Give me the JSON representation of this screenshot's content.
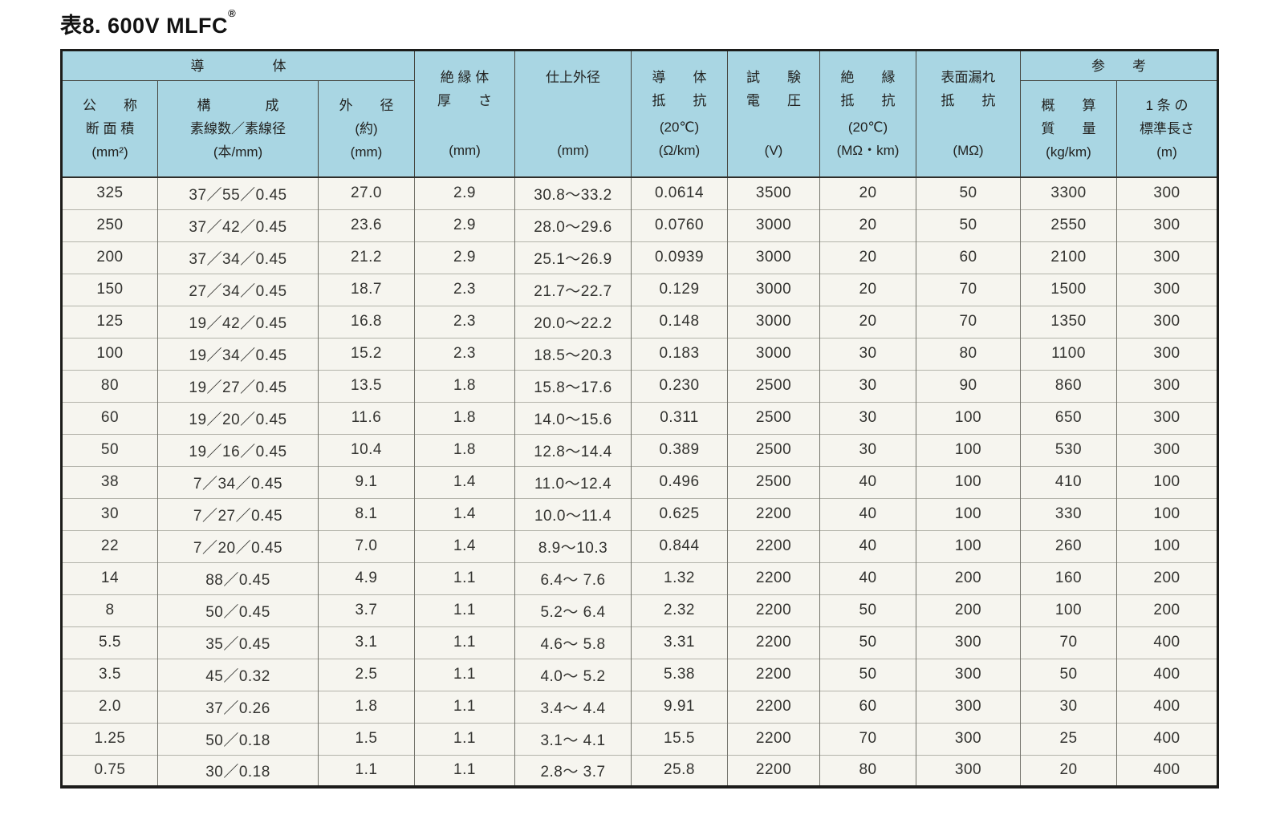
{
  "title": {
    "text": "表8. 600V MLFC",
    "registered_mark": "®"
  },
  "colors": {
    "header_bg": "#a9d6e3",
    "row_bg": "#f6f5ef",
    "border_dark": "#1c1c1a",
    "border_mid": "#74746c",
    "row_line": "#b3b3aa"
  },
  "table": {
    "header": {
      "conductor_group": "導　　　　　体",
      "reference_group": "参　　考",
      "nominal_area": {
        "l1": "公　　称",
        "l2": "断 面 積",
        "unit": "(mm²)"
      },
      "composition": {
        "l1": "構　　　　成",
        "l2": "素線数／素線径",
        "unit": "(本/mm)"
      },
      "outer_diameter": {
        "l1": "外　　径",
        "l2": "(約)",
        "unit": "(mm)"
      },
      "insulation_thickness": {
        "l1": "絶 縁 体",
        "l2": "厚　　さ",
        "unit": "(mm)"
      },
      "finished_diameter": {
        "l1": "仕上外径",
        "unit": "(mm)"
      },
      "conductor_resistance": {
        "l1": "導　　体",
        "l2": "抵　　抗",
        "u1": "(20℃)",
        "u2": "(Ω/km)"
      },
      "test_voltage": {
        "l1": "試　　験",
        "l2": "電　　圧",
        "unit": "(V)"
      },
      "insulation_resistance": {
        "l1": "絶　　縁",
        "l2": "抵　　抗",
        "u1": "(20℃)",
        "u2": "(MΩ・km)"
      },
      "surface_leakage": {
        "l1": "表面漏れ",
        "l2": "抵　　抗",
        "unit": "(MΩ)"
      },
      "approx_mass": {
        "l1": "概　　算",
        "l2": "質　　量",
        "unit": "(kg/km)"
      },
      "standard_length": {
        "l1": "1 条 の",
        "l2": "標準長さ",
        "unit": "(m)"
      }
    },
    "rows": [
      [
        "325",
        "37／55／0.45",
        "27.0",
        "2.9",
        "30.8〜33.2",
        "0.0614",
        "3500",
        "20",
        "50",
        "3300",
        "300"
      ],
      [
        "250",
        "37／42／0.45",
        "23.6",
        "2.9",
        "28.0〜29.6",
        "0.0760",
        "3000",
        "20",
        "50",
        "2550",
        "300"
      ],
      [
        "200",
        "37／34／0.45",
        "21.2",
        "2.9",
        "25.1〜26.9",
        "0.0939",
        "3000",
        "20",
        "60",
        "2100",
        "300"
      ],
      [
        "150",
        "27／34／0.45",
        "18.7",
        "2.3",
        "21.7〜22.7",
        "0.129",
        "3000",
        "20",
        "70",
        "1500",
        "300"
      ],
      [
        "125",
        "19／42／0.45",
        "16.8",
        "2.3",
        "20.0〜22.2",
        "0.148",
        "3000",
        "20",
        "70",
        "1350",
        "300"
      ],
      [
        "100",
        "19／34／0.45",
        "15.2",
        "2.3",
        "18.5〜20.3",
        "0.183",
        "3000",
        "30",
        "80",
        "1100",
        "300"
      ],
      [
        "80",
        "19／27／0.45",
        "13.5",
        "1.8",
        "15.8〜17.6",
        "0.230",
        "2500",
        "30",
        "90",
        "860",
        "300"
      ],
      [
        "60",
        "19／20／0.45",
        "11.6",
        "1.8",
        "14.0〜15.6",
        "0.311",
        "2500",
        "30",
        "100",
        "650",
        "300"
      ],
      [
        "50",
        "19／16／0.45",
        "10.4",
        "1.8",
        "12.8〜14.4",
        "0.389",
        "2500",
        "30",
        "100",
        "530",
        "300"
      ],
      [
        "38",
        "7／34／0.45",
        "9.1",
        "1.4",
        "11.0〜12.4",
        "0.496",
        "2500",
        "40",
        "100",
        "410",
        "100"
      ],
      [
        "30",
        "7／27／0.45",
        "8.1",
        "1.4",
        "10.0〜11.4",
        "0.625",
        "2200",
        "40",
        "100",
        "330",
        "100"
      ],
      [
        "22",
        "7／20／0.45",
        "7.0",
        "1.4",
        "8.9〜10.3",
        "0.844",
        "2200",
        "40",
        "100",
        "260",
        "100"
      ],
      [
        "14",
        "88／0.45",
        "4.9",
        "1.1",
        "6.4〜 7.6",
        "1.32",
        "2200",
        "40",
        "200",
        "160",
        "200"
      ],
      [
        "8",
        "50／0.45",
        "3.7",
        "1.1",
        "5.2〜 6.4",
        "2.32",
        "2200",
        "50",
        "200",
        "100",
        "200"
      ],
      [
        "5.5",
        "35／0.45",
        "3.1",
        "1.1",
        "4.6〜 5.8",
        "3.31",
        "2200",
        "50",
        "300",
        "70",
        "400"
      ],
      [
        "3.5",
        "45／0.32",
        "2.5",
        "1.1",
        "4.0〜 5.2",
        "5.38",
        "2200",
        "50",
        "300",
        "50",
        "400"
      ],
      [
        "2.0",
        "37／0.26",
        "1.8",
        "1.1",
        "3.4〜 4.4",
        "9.91",
        "2200",
        "60",
        "300",
        "30",
        "400"
      ],
      [
        "1.25",
        "50／0.18",
        "1.5",
        "1.1",
        "3.1〜 4.1",
        "15.5",
        "2200",
        "70",
        "300",
        "25",
        "400"
      ],
      [
        "0.75",
        "30／0.18",
        "1.1",
        "1.1",
        "2.8〜 3.7",
        "25.8",
        "2200",
        "80",
        "300",
        "20",
        "400"
      ]
    ]
  }
}
